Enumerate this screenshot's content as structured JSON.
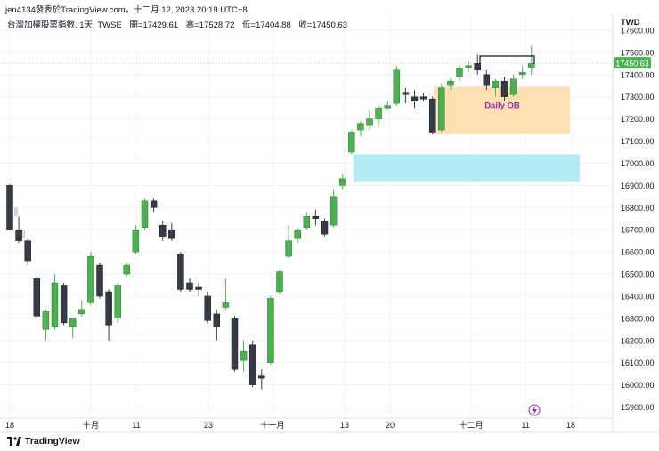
{
  "header": {
    "credit": "jen4134發表於TradingView.com，十二月 12, 2023 20:19 UTC+8",
    "symbol": "台灣加權股票指數, 1天, TWSE",
    "open": "開=17429.61",
    "high": "高=17528.72",
    "low": "低=17404.88",
    "close": "收=17450.63"
  },
  "currency": "TWD",
  "brand": "TradingView",
  "last_price_label": "17450.63",
  "annotation_label": "Daily OB",
  "colors": {
    "up": "#4caf50",
    "down": "#363a45",
    "orange_zone": "#ffe0b2",
    "blue_zone": "#b2ebf2",
    "annotation": "#9c27b0",
    "price_badge": "#4caf50",
    "grid": "#f0f3fa"
  },
  "chart_data": {
    "type": "candlestick",
    "x_ticks": [
      "18",
      "十月",
      "11",
      "23",
      "十一月",
      "13",
      "20",
      "十二月",
      "11",
      "18"
    ],
    "y_ticks": [
      "17600.00",
      "17500.00",
      "17400.00",
      "17300.00",
      "17200.00",
      "17100.00",
      "17000.00",
      "16900.00",
      "16800.00",
      "16700.00",
      "16600.00",
      "16500.00",
      "16400.00",
      "16300.00",
      "16200.00",
      "16100.00",
      "16000.00",
      "15900.00"
    ],
    "y_range": [
      15850,
      17680
    ],
    "last_price": 17450.63,
    "candles": [
      {
        "o": 16900,
        "h": 16905,
        "l": 16700,
        "c": 16700
      },
      {
        "o": 16700,
        "h": 16760,
        "l": 16640,
        "c": 16650
      },
      {
        "o": 16650,
        "h": 16660,
        "l": 16540,
        "c": 16560
      },
      {
        "o": 16480,
        "h": 16490,
        "l": 16300,
        "c": 16310
      },
      {
        "o": 16250,
        "h": 16340,
        "l": 16200,
        "c": 16330
      },
      {
        "o": 16260,
        "h": 16500,
        "l": 16250,
        "c": 16460
      },
      {
        "o": 16450,
        "h": 16460,
        "l": 16270,
        "c": 16280
      },
      {
        "o": 16260,
        "h": 16300,
        "l": 16210,
        "c": 16300
      },
      {
        "o": 16320,
        "h": 16380,
        "l": 16310,
        "c": 16340
      },
      {
        "o": 16370,
        "h": 16600,
        "l": 16360,
        "c": 16580
      },
      {
        "o": 16540,
        "h": 16550,
        "l": 16390,
        "c": 16400
      },
      {
        "o": 16420,
        "h": 16430,
        "l": 16200,
        "c": 16270
      },
      {
        "o": 16300,
        "h": 16460,
        "l": 16280,
        "c": 16450
      },
      {
        "o": 16500,
        "h": 16550,
        "l": 16490,
        "c": 16540
      },
      {
        "o": 16600,
        "h": 16720,
        "l": 16590,
        "c": 16700
      },
      {
        "o": 16710,
        "h": 16840,
        "l": 16700,
        "c": 16830
      },
      {
        "o": 16830,
        "h": 16840,
        "l": 16780,
        "c": 16800
      },
      {
        "o": 16720,
        "h": 16740,
        "l": 16650,
        "c": 16670
      },
      {
        "o": 16700,
        "h": 16730,
        "l": 16650,
        "c": 16660
      },
      {
        "o": 16590,
        "h": 16600,
        "l": 16420,
        "c": 16430
      },
      {
        "o": 16460,
        "h": 16480,
        "l": 16420,
        "c": 16430
      },
      {
        "o": 16440,
        "h": 16460,
        "l": 16400,
        "c": 16430
      },
      {
        "o": 16400,
        "h": 16420,
        "l": 16280,
        "c": 16290
      },
      {
        "o": 16320,
        "h": 16340,
        "l": 16200,
        "c": 16260
      },
      {
        "o": 16350,
        "h": 16480,
        "l": 16340,
        "c": 16370
      },
      {
        "o": 16300,
        "h": 16310,
        "l": 16060,
        "c": 16070
      },
      {
        "o": 16110,
        "h": 16200,
        "l": 16060,
        "c": 16150
      },
      {
        "o": 16180,
        "h": 16200,
        "l": 15990,
        "c": 16000
      },
      {
        "o": 16040,
        "h": 16070,
        "l": 15980,
        "c": 16030
      },
      {
        "o": 16100,
        "h": 16400,
        "l": 16090,
        "c": 16390
      },
      {
        "o": 16420,
        "h": 16520,
        "l": 16410,
        "c": 16510
      },
      {
        "o": 16580,
        "h": 16720,
        "l": 16570,
        "c": 16650
      },
      {
        "o": 16660,
        "h": 16710,
        "l": 16640,
        "c": 16700
      },
      {
        "o": 16710,
        "h": 16780,
        "l": 16700,
        "c": 16760
      },
      {
        "o": 16760,
        "h": 16790,
        "l": 16720,
        "c": 16750
      },
      {
        "o": 16740,
        "h": 16750,
        "l": 16670,
        "c": 16680
      },
      {
        "o": 16720,
        "h": 16880,
        "l": 16710,
        "c": 16850
      },
      {
        "o": 16900,
        "h": 16950,
        "l": 16880,
        "c": 16930
      },
      {
        "o": 17050,
        "h": 17150,
        "l": 17040,
        "c": 17140
      },
      {
        "o": 17150,
        "h": 17190,
        "l": 17120,
        "c": 17180
      },
      {
        "o": 17170,
        "h": 17240,
        "l": 17150,
        "c": 17200
      },
      {
        "o": 17200,
        "h": 17260,
        "l": 17170,
        "c": 17250
      },
      {
        "o": 17250,
        "h": 17280,
        "l": 17240,
        "c": 17260
      },
      {
        "o": 17270,
        "h": 17440,
        "l": 17260,
        "c": 17420
      },
      {
        "o": 17320,
        "h": 17340,
        "l": 17270,
        "c": 17310
      },
      {
        "o": 17300,
        "h": 17330,
        "l": 17250,
        "c": 17280
      },
      {
        "o": 17300,
        "h": 17320,
        "l": 17280,
        "c": 17290
      },
      {
        "o": 17290,
        "h": 17300,
        "l": 17130,
        "c": 17140
      },
      {
        "o": 17150,
        "h": 17360,
        "l": 17140,
        "c": 17340
      },
      {
        "o": 17350,
        "h": 17380,
        "l": 17330,
        "c": 17370
      },
      {
        "o": 17390,
        "h": 17440,
        "l": 17370,
        "c": 17430
      },
      {
        "o": 17430,
        "h": 17460,
        "l": 17410,
        "c": 17440
      },
      {
        "o": 17450,
        "h": 17490,
        "l": 17400,
        "c": 17420
      },
      {
        "o": 17400,
        "h": 17420,
        "l": 17330,
        "c": 17350
      },
      {
        "o": 17340,
        "h": 17380,
        "l": 17300,
        "c": 17370
      },
      {
        "o": 17370,
        "h": 17390,
        "l": 17280,
        "c": 17300
      },
      {
        "o": 17310,
        "h": 17400,
        "l": 17300,
        "c": 17380
      },
      {
        "o": 17400,
        "h": 17440,
        "l": 17380,
        "c": 17410
      },
      {
        "o": 17430,
        "h": 17530,
        "l": 17400,
        "c": 17450
      }
    ],
    "zones": [
      {
        "label": "Daily OB",
        "color": "orange",
        "top": 17345,
        "bottom": 17130
      },
      {
        "color": "blue",
        "top": 17040,
        "bottom": 16915
      }
    ],
    "grid": true
  }
}
